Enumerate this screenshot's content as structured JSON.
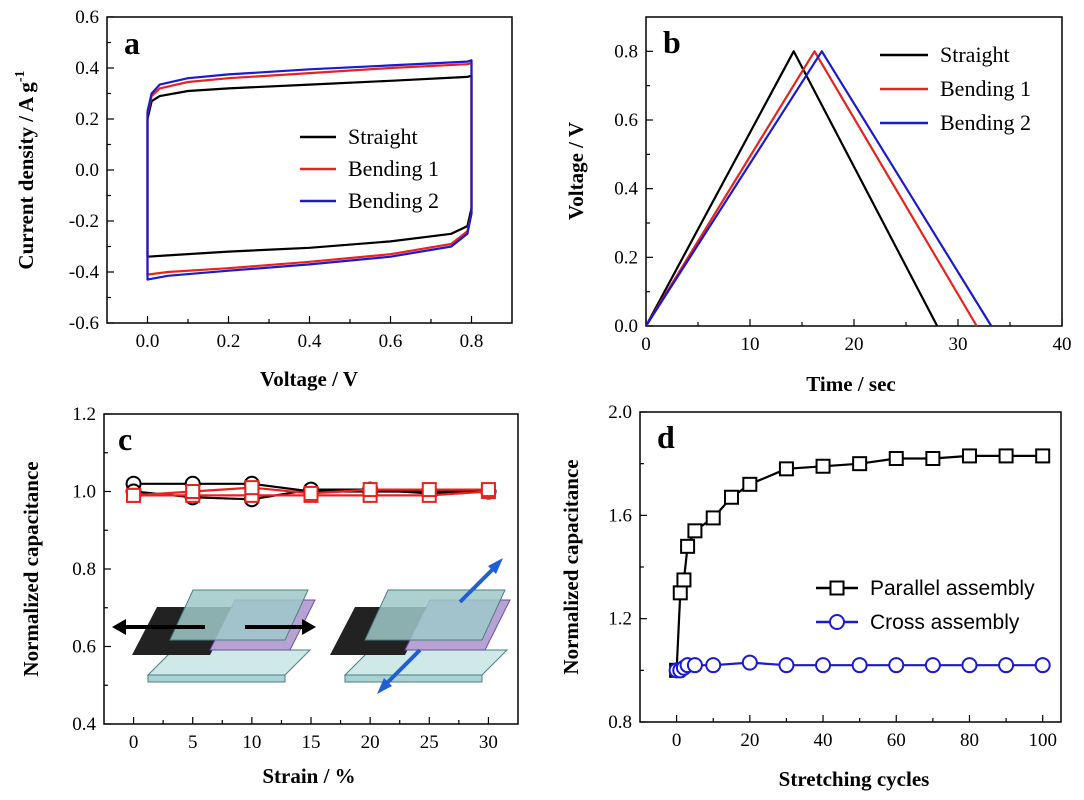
{
  "chart_data": [
    {
      "panel": "a",
      "type": "line",
      "xlabel": "Voltage / V",
      "ylabel": "Current density / A g",
      "ylabel_sup": "-1",
      "xlim": [
        -0.1,
        0.9
      ],
      "ylim": [
        -0.6,
        0.6
      ],
      "xticks": [
        "0.0",
        "0.2",
        "0.4",
        "0.6",
        "0.8"
      ],
      "yticks": [
        "-0.6",
        "-0.4",
        "-0.2",
        "0.0",
        "0.2",
        "0.4",
        "0.6"
      ],
      "legend_position": "right",
      "series": [
        {
          "name": "Straight",
          "color": "#000000",
          "upper": [
            [
              0.0,
              0.2
            ],
            [
              0.01,
              0.27
            ],
            [
              0.03,
              0.29
            ],
            [
              0.1,
              0.31
            ],
            [
              0.2,
              0.32
            ],
            [
              0.4,
              0.335
            ],
            [
              0.6,
              0.35
            ],
            [
              0.79,
              0.365
            ],
            [
              0.8,
              0.37
            ]
          ],
          "lower": [
            [
              0.8,
              0.37
            ],
            [
              0.8,
              -0.15
            ],
            [
              0.79,
              -0.22
            ],
            [
              0.75,
              -0.25
            ],
            [
              0.6,
              -0.28
            ],
            [
              0.4,
              -0.305
            ],
            [
              0.2,
              -0.32
            ],
            [
              0.05,
              -0.335
            ],
            [
              0.0,
              -0.34
            ],
            [
              0.0,
              0.2
            ]
          ]
        },
        {
          "name": "Bending 1",
          "color": "#e8231d",
          "upper": [
            [
              0.0,
              0.22
            ],
            [
              0.01,
              0.29
            ],
            [
              0.03,
              0.32
            ],
            [
              0.1,
              0.345
            ],
            [
              0.2,
              0.36
            ],
            [
              0.4,
              0.38
            ],
            [
              0.6,
              0.4
            ],
            [
              0.79,
              0.415
            ],
            [
              0.8,
              0.42
            ]
          ],
          "lower": [
            [
              0.8,
              0.42
            ],
            [
              0.8,
              -0.17
            ],
            [
              0.79,
              -0.24
            ],
            [
              0.75,
              -0.29
            ],
            [
              0.6,
              -0.33
            ],
            [
              0.4,
              -0.36
            ],
            [
              0.2,
              -0.385
            ],
            [
              0.05,
              -0.4
            ],
            [
              0.0,
              -0.41
            ],
            [
              0.0,
              0.22
            ]
          ]
        },
        {
          "name": "Bending 2",
          "color": "#1a1ad0",
          "upper": [
            [
              0.0,
              0.23
            ],
            [
              0.01,
              0.3
            ],
            [
              0.03,
              0.335
            ],
            [
              0.1,
              0.36
            ],
            [
              0.2,
              0.375
            ],
            [
              0.4,
              0.395
            ],
            [
              0.6,
              0.41
            ],
            [
              0.79,
              0.425
            ],
            [
              0.8,
              0.43
            ]
          ],
          "lower": [
            [
              0.8,
              0.43
            ],
            [
              0.8,
              -0.17
            ],
            [
              0.79,
              -0.25
            ],
            [
              0.75,
              -0.3
            ],
            [
              0.6,
              -0.34
            ],
            [
              0.4,
              -0.37
            ],
            [
              0.2,
              -0.395
            ],
            [
              0.05,
              -0.415
            ],
            [
              0.0,
              -0.43
            ],
            [
              0.0,
              0.23
            ]
          ]
        }
      ]
    },
    {
      "panel": "b",
      "type": "line",
      "xlabel": "Time / sec",
      "ylabel": "Voltage / V",
      "xlim": [
        0,
        40
      ],
      "ylim": [
        0,
        0.9
      ],
      "xticks": [
        "0",
        "10",
        "20",
        "30",
        "40"
      ],
      "yticks": [
        "0.0",
        "0.2",
        "0.4",
        "0.6",
        "0.8"
      ],
      "legend_position": "top-right",
      "series": [
        {
          "name": "Straight",
          "color": "#000000",
          "x": [
            0,
            14.2,
            28.0
          ],
          "y": [
            0,
            0.8,
            0
          ]
        },
        {
          "name": "Bending 1",
          "color": "#e8231d",
          "x": [
            0,
            16.2,
            31.8
          ],
          "y": [
            0,
            0.8,
            0
          ]
        },
        {
          "name": "Bending 2",
          "color": "#1a1ad0",
          "x": [
            0,
            16.9,
            33.2
          ],
          "y": [
            0,
            0.8,
            0
          ]
        }
      ]
    },
    {
      "panel": "c",
      "type": "line",
      "xlabel": "Strain / %",
      "ylabel": "Normalized capacitance",
      "xlim": [
        -2.5,
        32.5
      ],
      "ylim": [
        0.4,
        1.2
      ],
      "xticks": [
        "0",
        "5",
        "10",
        "15",
        "20",
        "25",
        "30"
      ],
      "yticks": [
        "0.4",
        "0.6",
        "0.8",
        "1.0",
        "1.2"
      ],
      "series": [
        {
          "color": "#000000",
          "marker": "circle",
          "x": [
            0,
            5,
            10,
            15,
            20,
            25,
            30
          ],
          "y": [
            1.02,
            1.02,
            1.02,
            1.0,
            1.0,
            1.0,
            1.0
          ]
        },
        {
          "color": "#000000",
          "marker": "circle",
          "x": [
            0,
            5,
            10,
            15,
            20,
            25,
            30
          ],
          "y": [
            1.0,
            0.985,
            0.98,
            1.005,
            1.005,
            0.995,
            1.0
          ]
        },
        {
          "color": "#e8231d",
          "marker": "square",
          "x": [
            0,
            5,
            10,
            15,
            20,
            25,
            30
          ],
          "y": [
            0.99,
            0.99,
            0.99,
            0.99,
            0.99,
            0.99,
            1.0
          ]
        },
        {
          "color": "#e8231d",
          "marker": "square",
          "x": [
            0,
            5,
            10,
            15,
            20,
            25,
            30
          ],
          "y": [
            0.99,
            1.0,
            1.01,
            0.995,
            1.005,
            1.005,
            1.005
          ]
        }
      ]
    },
    {
      "panel": "d",
      "type": "line",
      "xlabel": "Stretching cycles",
      "ylabel": "Normalized capacitance",
      "xlim": [
        -10,
        105
      ],
      "ylim": [
        0.8,
        2.0
      ],
      "xticks": [
        "0",
        "20",
        "40",
        "60",
        "80",
        "100"
      ],
      "yticks": [
        "0.8",
        "1.2",
        "1.6",
        "2.0"
      ],
      "legend_position": "lower-right",
      "series": [
        {
          "name": "Parallel assembly",
          "color": "#000000",
          "marker": "square",
          "x": [
            0,
            1,
            2,
            3,
            5,
            10,
            15,
            20,
            30,
            40,
            50,
            60,
            70,
            80,
            90,
            100
          ],
          "y": [
            1.0,
            1.3,
            1.35,
            1.48,
            1.54,
            1.59,
            1.67,
            1.72,
            1.78,
            1.79,
            1.8,
            1.82,
            1.82,
            1.83,
            1.83,
            1.83
          ]
        },
        {
          "name": "Cross assembly",
          "color": "#1a1ad0",
          "marker": "circle",
          "x": [
            0,
            1,
            2,
            3,
            5,
            10,
            20,
            30,
            40,
            50,
            60,
            70,
            80,
            90,
            100
          ],
          "y": [
            1.0,
            1.0,
            1.01,
            1.02,
            1.02,
            1.02,
            1.03,
            1.02,
            1.02,
            1.02,
            1.02,
            1.02,
            1.02,
            1.02,
            1.02
          ]
        }
      ]
    }
  ]
}
